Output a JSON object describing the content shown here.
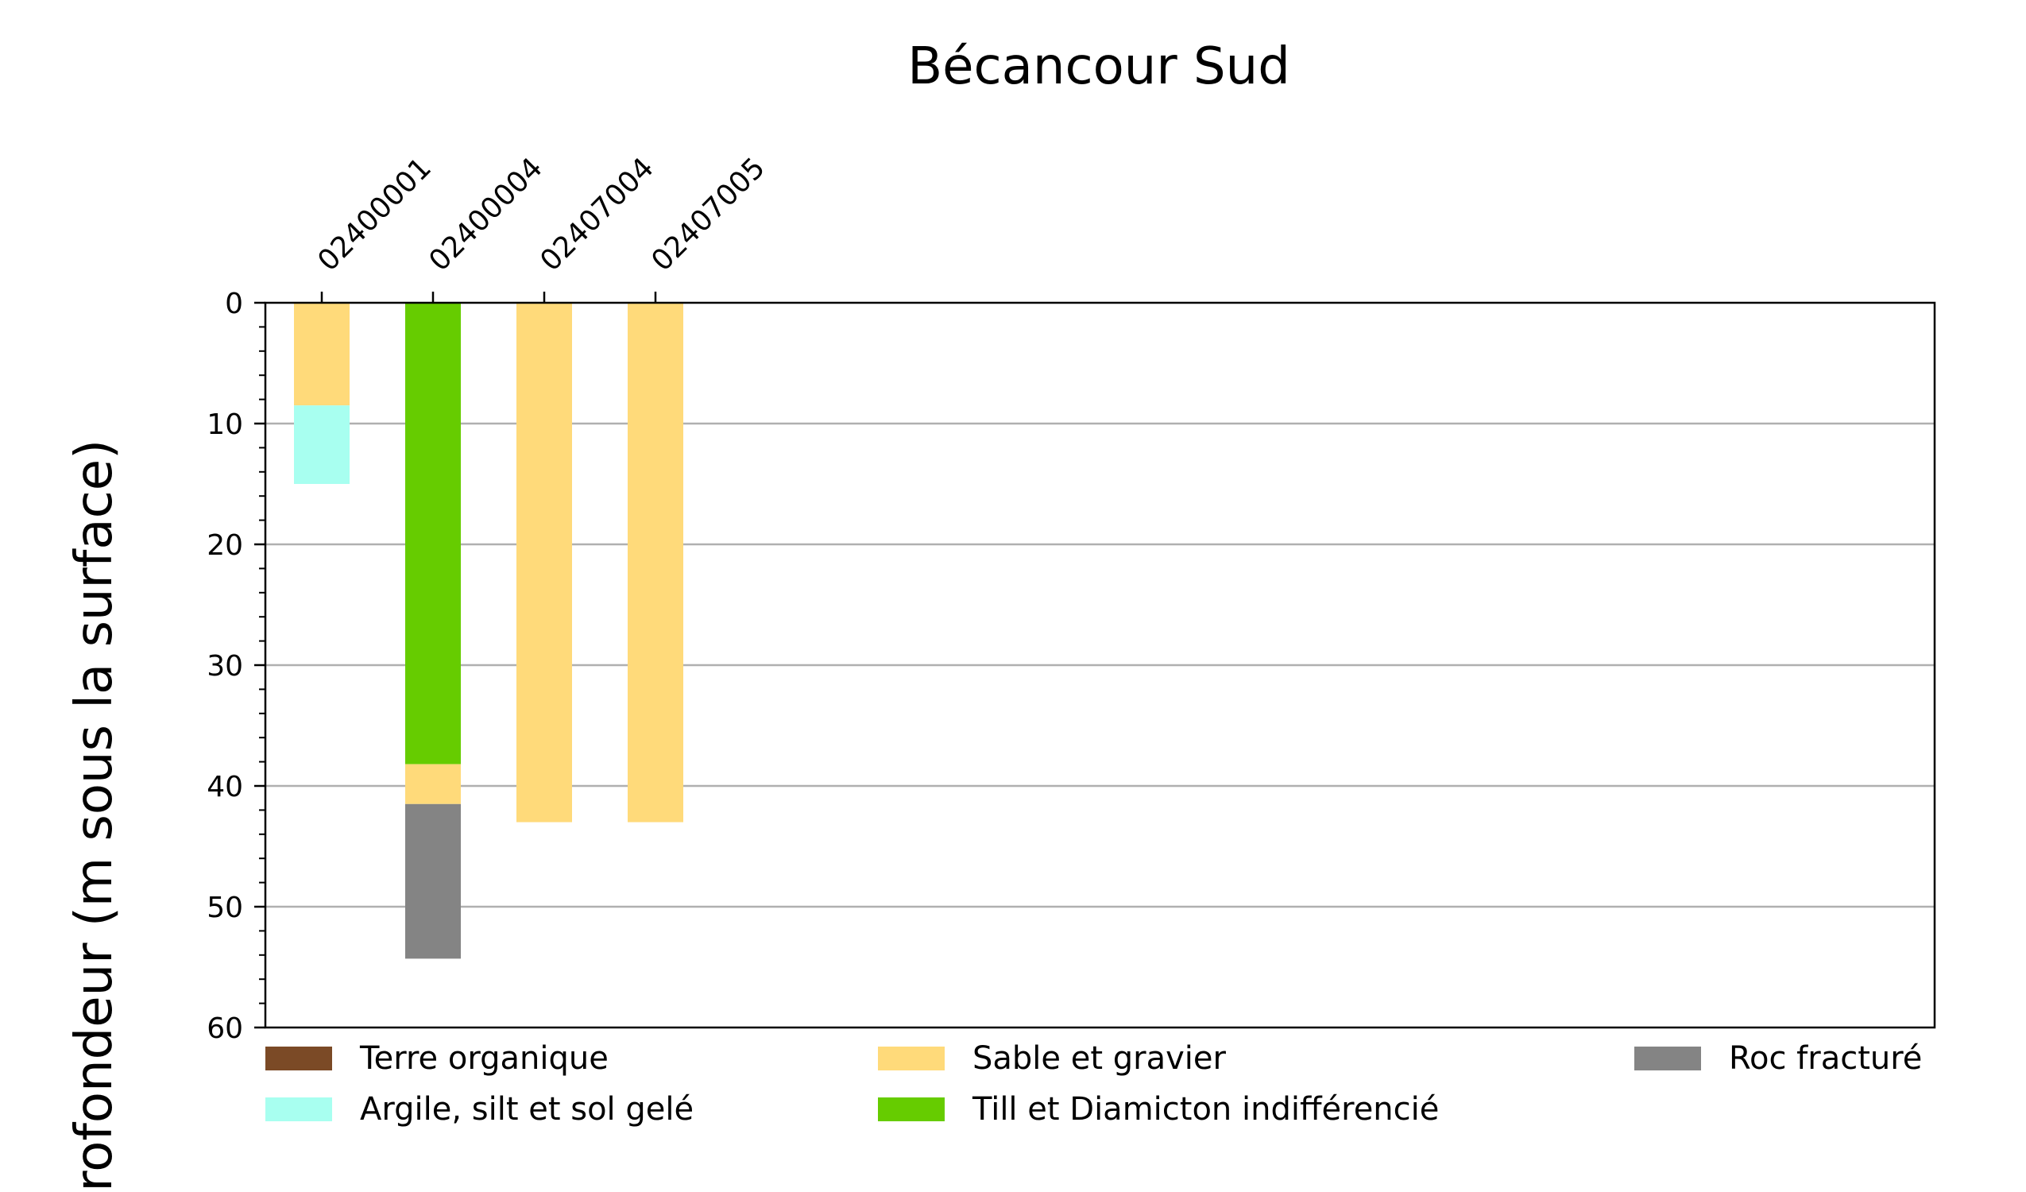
{
  "chart_data": {
    "type": "bar",
    "title": "Bécancour Sud",
    "ylabel": "Profondeur (m sous la surface)",
    "xlabel": "",
    "ylim": [
      0,
      60
    ],
    "y_inverted": true,
    "yticks": [
      0,
      10,
      20,
      30,
      40,
      50,
      60
    ],
    "y_minor_tick_step": 2,
    "grid": "horizontal",
    "xaxis_position": "top",
    "categories": [
      "02400001",
      "02400004",
      "02407004",
      "02407005"
    ],
    "columns": [
      {
        "name": "02400001",
        "layers": [
          {
            "material": "Sable et gravier",
            "top": 0,
            "bottom": 8.5
          },
          {
            "material": "Argile, silt et sol gelé",
            "top": 8.5,
            "bottom": 15
          }
        ]
      },
      {
        "name": "02400004",
        "layers": [
          {
            "material": "Till et Diamicton indifférencié",
            "top": 0,
            "bottom": 38.2
          },
          {
            "material": "Sable et gravier",
            "top": 38.2,
            "bottom": 41.5
          },
          {
            "material": "Roc fracturé",
            "top": 41.5,
            "bottom": 54.3
          }
        ]
      },
      {
        "name": "02407004",
        "layers": [
          {
            "material": "Sable et gravier",
            "top": 0,
            "bottom": 43
          }
        ]
      },
      {
        "name": "02407005",
        "layers": [
          {
            "material": "Sable et gravier",
            "top": 0,
            "bottom": 43
          }
        ]
      }
    ],
    "legend_placement": "bottom",
    "legend": [
      {
        "label": "Terre organique",
        "color": "#7b4a26"
      },
      {
        "label": "Sable et gravier",
        "color": "#ffda7a"
      },
      {
        "label": "Roc fracturé",
        "color": "#848484"
      },
      {
        "label": "Argile, silt et sol gelé",
        "color": "#a8fff0"
      },
      {
        "label": "Till et Diamicton indifférencié",
        "color": "#66cc00"
      }
    ]
  }
}
